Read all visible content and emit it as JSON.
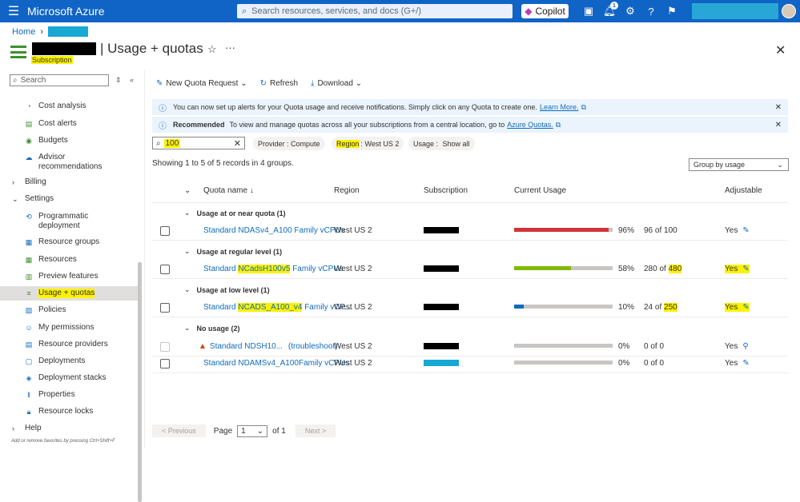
{
  "topbar": {
    "brand": "Microsoft Azure",
    "search_placeholder": "Search resources, services, and docs (G+/)",
    "copilot": "Copilot",
    "notif_count": "1"
  },
  "breadcrumb": {
    "home": "Home"
  },
  "header": {
    "title": "| Usage + quotas",
    "subtitle": "Subscription"
  },
  "sidebar": {
    "search_placeholder": "Search",
    "items": [
      {
        "label": "Cost analysis",
        "icon": "cost-analysis-icon"
      },
      {
        "label": "Cost alerts",
        "icon": "cost-alerts-icon"
      },
      {
        "label": "Budgets",
        "icon": "budgets-icon"
      },
      {
        "label": "Advisor recommendations",
        "icon": "advisor-icon"
      },
      {
        "label": "Billing",
        "icon": "chevron-right-icon"
      },
      {
        "label": "Settings",
        "icon": "chevron-down-icon"
      },
      {
        "label": "Programmatic deployment",
        "icon": "programmatic-icon"
      },
      {
        "label": "Resource groups",
        "icon": "resource-groups-icon"
      },
      {
        "label": "Resources",
        "icon": "resources-icon"
      },
      {
        "label": "Preview features",
        "icon": "preview-icon"
      },
      {
        "label": "Usage + quotas",
        "icon": "usage-quotas-icon"
      },
      {
        "label": "Policies",
        "icon": "policies-icon"
      },
      {
        "label": "My permissions",
        "icon": "permissions-icon"
      },
      {
        "label": "Resource providers",
        "icon": "providers-icon"
      },
      {
        "label": "Deployments",
        "icon": "deployments-icon"
      },
      {
        "label": "Deployment stacks",
        "icon": "stacks-icon"
      },
      {
        "label": "Properties",
        "icon": "properties-icon"
      },
      {
        "label": "Resource locks",
        "icon": "locks-icon"
      },
      {
        "label": "Help",
        "icon": "chevron-right-icon"
      }
    ],
    "footer": "Add or remove favorites by pressing Ctrl+Shift+F"
  },
  "toolbar": {
    "new_request": "New Quota Request",
    "refresh": "Refresh",
    "download": "Download"
  },
  "banner1": {
    "text": "You can now set up alerts for your Quota usage and receive notifications. Simply click on any Quota to create one.",
    "link": "Learn More."
  },
  "banner2": {
    "bold": "Recommended",
    "text": "To view and manage quotas across all your subscriptions from a central location, go to",
    "link": "Azure Quotas."
  },
  "filters": {
    "search_value": "100",
    "provider": "Provider : Compute",
    "region_key": "Region",
    "region_val": ": West US 2",
    "usage_key": "Usage : ",
    "usage_val": "Show all"
  },
  "records": "Showing 1 to 5 of 5 records in 4 groups.",
  "group_by": "Group by usage",
  "columns": {
    "quota": "Quota name ↓",
    "region": "Region",
    "subscription": "Subscription",
    "usage": "Current Usage",
    "adjustable": "Adjustable"
  },
  "groups": [
    {
      "label": "Usage at or near quota (1)"
    },
    {
      "label": "Usage at regular level (1)"
    },
    {
      "label": "Usage at low level (1)"
    },
    {
      "label": "No usage (2)"
    }
  ],
  "rows": [
    {
      "pre": "Standard NDASv4_A100 Family vCPUs",
      "hl": "",
      "post": "",
      "region": "West US 2",
      "pct": "96%",
      "usage_pre": "96 of 100",
      "usage_hl": "",
      "adj": "Yes",
      "fill": 0.96,
      "color": "#d13438"
    },
    {
      "pre": "Standard ",
      "hl": "NCadsH100v5",
      "post": " Family vCPUs",
      "region": "West US 2",
      "pct": "58%",
      "usage_pre": "280 of ",
      "usage_hl": "480",
      "adj": "Yes",
      "fill": 0.58,
      "color": "#7fba00"
    },
    {
      "pre": "Standard ",
      "hl": "NCADS_A100_v4",
      "post": " Family vCP...",
      "region": "West US 2",
      "pct": "10%",
      "usage_pre": "24 of ",
      "usage_hl": "250",
      "adj": "Yes",
      "fill": 0.1,
      "color": "#0f6cbd"
    },
    {
      "pre": "Standard NDSH10...",
      "hl": "",
      "post": "",
      "trouble": "(troubleshoot)",
      "region": "West US 2",
      "pct": "0%",
      "usage_pre": "0 of 0",
      "usage_hl": "",
      "adj": "Yes",
      "fill": 0,
      "color": "#c8c6c4"
    },
    {
      "pre": "Standard NDAMSv4_A100Family vCPUs",
      "hl": "",
      "post": "",
      "region": "West US 2",
      "pct": "0%",
      "usage_pre": "0 of 0",
      "usage_hl": "",
      "adj": "Yes",
      "fill": 0,
      "color": "#c8c6c4"
    }
  ],
  "pager": {
    "prev": "< Previous",
    "page": "Page",
    "page_val": "1",
    "of": "of 1",
    "next": "Next >"
  }
}
